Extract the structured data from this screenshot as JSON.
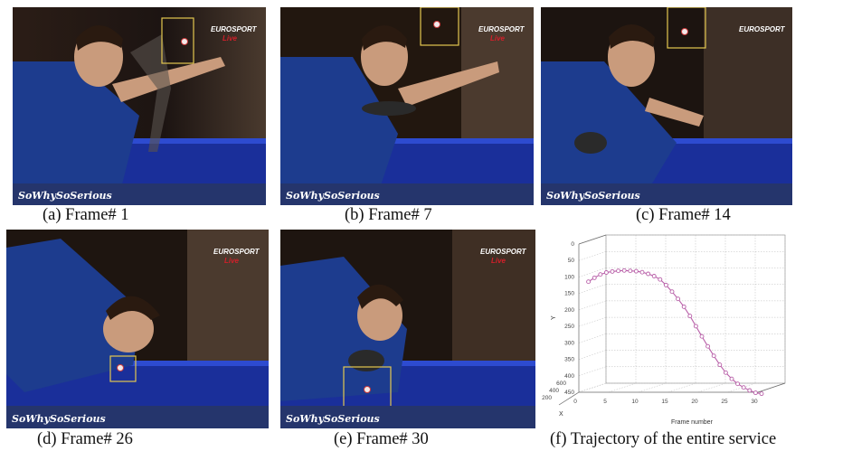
{
  "captions": {
    "a": "(a) Frame# 1",
    "b": "(b) Frame# 7",
    "c": "(c) Frame# 14",
    "d": "(d) Frame# 26",
    "e": "(e) Frame# 30",
    "f": "(f) Trajectory of the entire service"
  },
  "overlay": {
    "broadcaster_logo": "EUROSPORT",
    "live_label": "Live",
    "watermark": "SoWhySoSerious"
  },
  "colors": {
    "tracking_box": "#e3c74f",
    "trajectory": "#b85fa8",
    "live_red": "#d0202a"
  },
  "chart_data": {
    "type": "line",
    "projection": "3d",
    "title": "",
    "xlabel": "Frame number",
    "ylabel": "Y",
    "zlabel": "X",
    "xlim": [
      0,
      30
    ],
    "ylim": [
      0,
      450
    ],
    "zlim": [
      200,
      600
    ],
    "x_ticks": [
      "0",
      "5",
      "10",
      "15",
      "20",
      "25",
      "30"
    ],
    "y_ticks": [
      "0",
      "50",
      "100",
      "150",
      "200",
      "250",
      "300",
      "350",
      "400",
      "450"
    ],
    "z_ticks": [
      "200",
      "400",
      "600"
    ],
    "y_inverted": true,
    "grid": true,
    "series": [
      {
        "x": [
          1,
          2,
          3,
          4,
          5,
          6,
          7,
          8,
          9,
          10,
          11,
          12,
          13,
          14,
          15,
          16,
          17,
          18,
          19,
          20,
          21,
          22,
          23,
          24,
          25,
          26,
          27,
          28,
          29,
          30
        ],
        "y": [
          120,
          108,
          98,
          92,
          89,
          87,
          86,
          87,
          88,
          91,
          96,
          103,
          113,
          130,
          150,
          172,
          196,
          224,
          255,
          286,
          316,
          345,
          372,
          396,
          415,
          430,
          441,
          450,
          457,
          460
        ]
      }
    ]
  }
}
